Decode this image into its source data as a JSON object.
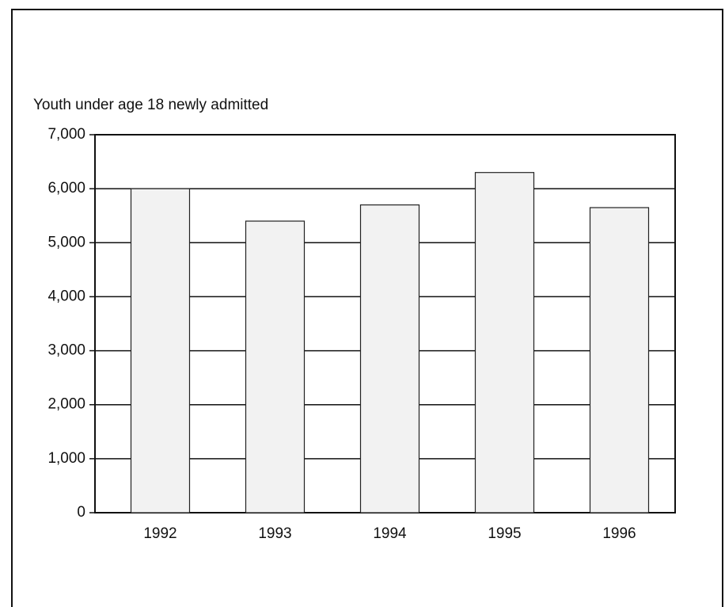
{
  "chart_data": {
    "type": "bar",
    "y_label": "Youth under age 18 newly admitted",
    "categories": [
      "1992",
      "1993",
      "1994",
      "1995",
      "1996"
    ],
    "values": [
      6000,
      5400,
      5700,
      6300,
      5650
    ],
    "color": "#f2f2f2",
    "ylim": [
      0,
      7000
    ],
    "yticks": [
      0,
      {
        "value": 1000,
        "label": "1,000"
      },
      {
        "value": 2000,
        "label": "2,000"
      },
      {
        "value": 3000,
        "label": "3,000"
      },
      {
        "value": 4000,
        "label": "4,000"
      },
      {
        "value": 5000,
        "label": "5,000"
      },
      {
        "value": 6000,
        "label": "6,000"
      },
      {
        "value": 7000,
        "label": "7,000"
      }
    ],
    "grid": true
  }
}
